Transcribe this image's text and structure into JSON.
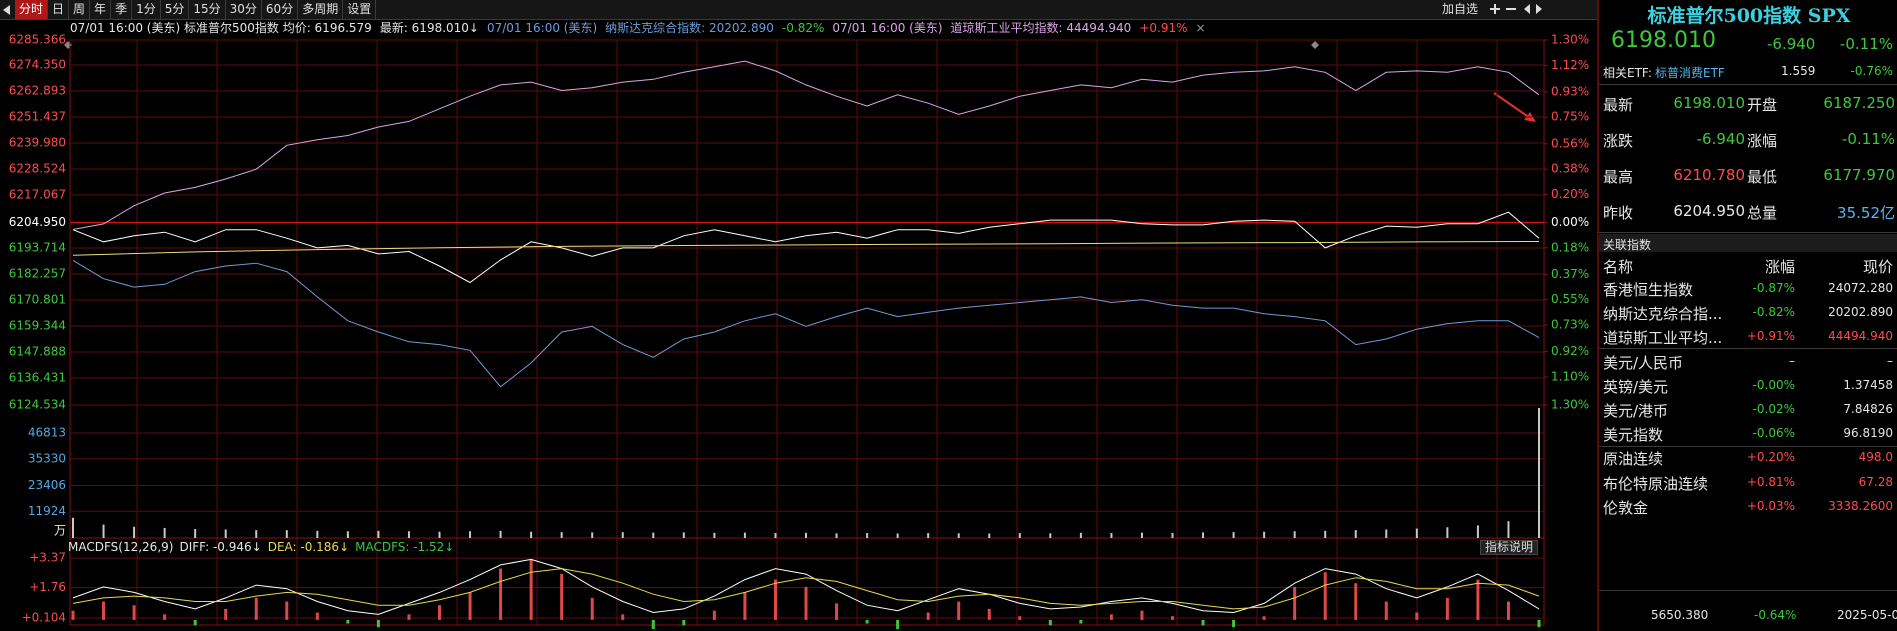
{
  "toolbar": {
    "tabs": [
      "分时",
      "日",
      "周",
      "年",
      "季",
      "1分",
      "5分",
      "15分",
      "30分",
      "60分",
      "多周期",
      "设置"
    ],
    "add_favorite": "加自选"
  },
  "info_bar": [
    "07/01 16:00 (美东) 标准普尔500指数 均价: 6196.579",
    "最新: 6198.010↓",
    "07/01 16:00 (美东)",
    "纳斯达克综合指数: 20202.890",
    "-0.82%",
    "07/01 16:00 (美东)",
    "道琼斯工业平均指数: 44494.940",
    "+0.91%",
    "×"
  ],
  "chart_data": [
    {
      "type": "line",
      "ylim": [
        6124.534,
        6285.366
      ],
      "yticks": [
        6285.366,
        {
          "value": 6274.35,
          "label": "6274.350"
        },
        6262.893,
        6251.437,
        {
          "value": 6239.98,
          "label": "6239.980"
        },
        6228.524,
        6217.067,
        {
          "value": 6204.95,
          "label": "6204.950"
        },
        6193.714,
        6182.257,
        6170.801,
        6159.344,
        6147.888,
        6136.431,
        6124.534
      ],
      "y2lim": [
        -1.3,
        1.3
      ],
      "y2ticks": [
        {
          "value": 1.3,
          "label": "1.30%"
        },
        {
          "value": 1.12,
          "label": "1.12%"
        },
        {
          "value": 0.93,
          "label": "0.93%"
        },
        {
          "value": 0.75,
          "label": "0.75%"
        },
        {
          "value": 0.56,
          "label": "0.56%"
        },
        {
          "value": 0.38,
          "label": "0.38%"
        },
        {
          "value": 0.2,
          "label": "0.20%"
        },
        {
          "value": 0,
          "label": "0.00%"
        },
        {
          "value": -0.18,
          "label": "0.18%"
        },
        {
          "value": -0.37,
          "label": "0.37%"
        },
        {
          "value": -0.55,
          "label": "0.55%"
        },
        {
          "value": -0.73,
          "label": "0.73%"
        },
        {
          "value": -0.92,
          "label": "0.92%"
        },
        {
          "value": -1.1,
          "label": "1.10%"
        },
        {
          "value": -1.3,
          "label": "1.30%"
        }
      ],
      "series": [
        {
          "color": "#ffffff",
          "values": [
            6201.76,
            6196.43,
            6199.09,
            6200.69,
            6196.43,
            6201.76,
            6201.76,
            6198.03,
            6193.77,
            6194.84,
            6191.11,
            6192.17,
            6185.78,
            6178.5,
            6188.45,
            6196.43,
            6193.77,
            6190.04,
            6193.77,
            6193.77,
            6199.09,
            6201.76,
            6199.09,
            6196.43,
            6199.09,
            6200.69,
            6198.03,
            6201.76,
            6201.76,
            6200.16,
            6202.82,
            6204.42,
            6206.02,
            6206.02,
            6206.02,
            6204.42,
            6203.89,
            6203.89,
            6205.48,
            6206.02,
            6205.48,
            6193.77,
            6199.09,
            6203.36,
            6202.82,
            6204.42,
            6204.42,
            6209.5,
            6198.01
          ]
        },
        {
          "color": "#e8e07a",
          "values": [
            6190.5,
            6192.0,
            6193.0,
            6193.8,
            6194.4,
            6194.8,
            6195.1,
            6195.4,
            6195.6,
            6195.9,
            6196.1,
            6196.4,
            6196.579
          ]
        },
        {
          "color": "#d9a6e6",
          "axis": "y2",
          "values": [
            -0.05,
            -0.01,
            0.12,
            0.21,
            0.25,
            0.31,
            0.38,
            0.55,
            0.59,
            0.62,
            0.68,
            0.72,
            0.81,
            0.9,
            0.98,
            1.0,
            0.94,
            0.96,
            1.0,
            1.02,
            1.07,
            1.11,
            1.15,
            1.08,
            0.98,
            0.9,
            0.83,
            0.91,
            0.85,
            0.77,
            0.83,
            0.9,
            0.94,
            0.98,
            0.96,
            1.02,
            1.0,
            1.05,
            1.07,
            1.08,
            1.11,
            1.07,
            0.94,
            1.07,
            1.08,
            1.07,
            1.11,
            1.07,
            0.91
          ]
        },
        {
          "color": "#6f9bd8",
          "axis": "y2",
          "values": [
            -0.27,
            -0.4,
            -0.46,
            -0.44,
            -0.35,
            -0.31,
            -0.29,
            -0.35,
            -0.53,
            -0.7,
            -0.78,
            -0.85,
            -0.87,
            -0.91,
            -1.17,
            -1.0,
            -0.78,
            -0.74,
            -0.87,
            -0.96,
            -0.83,
            -0.78,
            -0.7,
            -0.65,
            -0.74,
            -0.67,
            -0.61,
            -0.67,
            -0.64,
            -0.61,
            -0.59,
            -0.57,
            -0.55,
            -0.53,
            -0.57,
            -0.55,
            -0.59,
            -0.61,
            -0.61,
            -0.65,
            -0.67,
            -0.7,
            -0.87,
            -0.83,
            -0.76,
            -0.72,
            -0.7,
            -0.7,
            -0.82
          ]
        }
      ]
    },
    {
      "type": "bar",
      "color": "#c8c8c8",
      "ylim": [
        0,
        59300
      ],
      "yticks": [
        46813,
        35330,
        23406,
        11924
      ],
      "ylabel": "万",
      "values": [
        9000,
        6000,
        5000,
        4500,
        4000,
        3800,
        3500,
        3500,
        3200,
        3000,
        3200,
        3000,
        2800,
        3000,
        3200,
        2800,
        2600,
        2500,
        2600,
        2400,
        2500,
        2300,
        2400,
        2200,
        2300,
        2100,
        2200,
        2000,
        2200,
        2100,
        2000,
        2200,
        2100,
        2300,
        2200,
        2400,
        2300,
        2500,
        2600,
        2800,
        3000,
        3200,
        3500,
        3800,
        4200,
        4800,
        5600,
        7500,
        58000
      ]
    },
    {
      "type": "macd",
      "ylim": [
        -0.28,
        3.65
      ],
      "yticks": [
        {
          "value": 3.37,
          "label": "+3.37"
        },
        {
          "value": 1.76,
          "label": "+1.76"
        },
        {
          "value": 0.104,
          "label": "+0.104"
        }
      ],
      "up_color": "#e04848",
      "down_color": "#3cc83c",
      "histogram": [
        0.5,
        1.0,
        0.8,
        0.3,
        -0.3,
        0.6,
        1.2,
        1.0,
        0.4,
        -0.2,
        -0.4,
        0.3,
        0.8,
        1.5,
        2.8,
        3.3,
        2.5,
        1.2,
        0.3,
        -0.5,
        -0.3,
        0.5,
        1.5,
        2.2,
        1.8,
        0.9,
        -0.2,
        -0.5,
        0.4,
        1.0,
        0.6,
        0.2,
        -0.3,
        -0.2,
        0.3,
        0.5,
        0.2,
        -0.3,
        -0.4,
        0.2,
        1.8,
        2.6,
        2.0,
        1.0,
        0.4,
        1.2,
        2.2,
        1.0,
        -0.4
      ],
      "series": [
        {
          "color": "#ffffff",
          "values": [
            1.2,
            1.8,
            1.5,
            1.0,
            0.6,
            1.2,
            1.9,
            1.7,
            1.0,
            0.5,
            0.3,
            0.9,
            1.5,
            2.2,
            3.0,
            3.3,
            2.8,
            1.8,
            1.0,
            0.4,
            0.6,
            1.3,
            2.2,
            2.8,
            2.5,
            1.6,
            0.8,
            0.5,
            1.1,
            1.7,
            1.4,
            0.9,
            0.6,
            0.7,
            1.0,
            1.2,
            0.9,
            0.5,
            0.4,
            0.9,
            2.0,
            2.8,
            2.5,
            1.7,
            1.2,
            1.8,
            2.5,
            1.6,
            0.6
          ]
        },
        {
          "color": "#e8d84a",
          "values": [
            0.9,
            1.2,
            1.3,
            1.2,
            1.0,
            1.0,
            1.3,
            1.5,
            1.4,
            1.1,
            0.8,
            0.8,
            1.1,
            1.5,
            2.1,
            2.6,
            2.8,
            2.5,
            2.0,
            1.4,
            1.0,
            1.1,
            1.5,
            2.0,
            2.3,
            2.1,
            1.6,
            1.1,
            1.0,
            1.3,
            1.4,
            1.2,
            0.9,
            0.8,
            0.9,
            1.0,
            1.0,
            0.8,
            0.6,
            0.7,
            1.2,
            1.9,
            2.3,
            2.1,
            1.7,
            1.7,
            2.0,
            1.9,
            1.3
          ]
        }
      ]
    }
  ],
  "macd_bar": {
    "label": "MACDFS(12,26,9)",
    "diff": "DIFF: -0.946↓",
    "dea": "DEA: -0.186↓",
    "macd": "MACDFS: -1.52↓",
    "help": "指标说明"
  },
  "quote_panel": {
    "title": "标准普尔500指数 SPX",
    "price": "6198.010",
    "change": "-6.940",
    "change_pct": "-0.11%",
    "etf": {
      "label": "相关ETF:",
      "name": "标普消费ETF",
      "price": "1.559",
      "change_pct": "-0.76%"
    },
    "stats": [
      [
        "最新",
        "6198.010",
        "开盘",
        "6187.250"
      ],
      [
        "涨跌",
        "-6.940",
        "涨幅",
        "-0.11%"
      ],
      [
        "最高",
        "6210.780",
        "最低",
        "6177.970"
      ],
      [
        "昨收",
        "6204.950",
        "总量",
        "35.52亿"
      ]
    ],
    "related": {
      "title": "关联指数",
      "headers": [
        "名称",
        "涨幅",
        "现价"
      ],
      "rows": [
        [
          "香港恒生指数",
          "-0.87%",
          "24072.280"
        ],
        [
          "纳斯达克综合指...",
          "-0.82%",
          "20202.890"
        ],
        [
          "道琼斯工业平均...",
          "+0.91%",
          "44494.940"
        ],
        [
          "美元/人民币",
          "–",
          "–"
        ],
        [
          "英镑/美元",
          "-0.00%",
          "1.37458"
        ],
        [
          "美元/港币",
          "-0.02%",
          "7.84826"
        ],
        [
          "美元指数",
          "-0.06%",
          "96.8190"
        ],
        [
          "原油连续",
          "+0.20%",
          "498.0"
        ],
        [
          "布伦特原油连续",
          "+0.81%",
          "67.28"
        ],
        [
          "伦敦金",
          "+0.03%",
          "3338.2600"
        ]
      ]
    },
    "footer": [
      "5650.380",
      "-0.64%",
      "2025-05-0"
    ]
  }
}
